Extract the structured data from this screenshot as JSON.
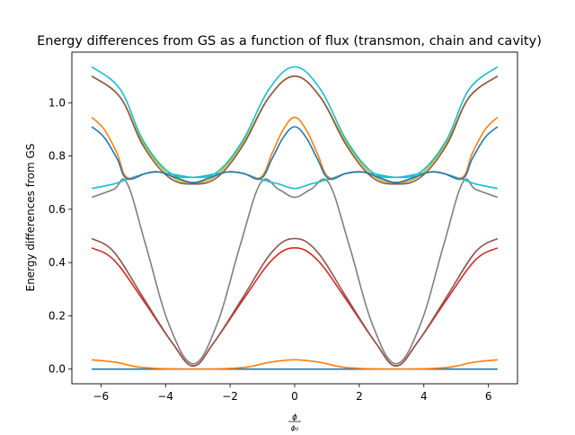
{
  "chart_data": {
    "type": "line",
    "title": "Energy differences from GS as a function of flux (transmon, chain and cavity)",
    "xlabel_num": "ϕ",
    "xlabel_den": "ϕ₀",
    "ylabel": "Energy differences from GS",
    "xlim": [
      -6.9,
      6.9
    ],
    "ylim": [
      -0.055,
      1.19
    ],
    "xticks": [
      -6,
      -4,
      -2,
      0,
      2,
      4,
      6
    ],
    "xtick_labels": [
      "−6",
      "−4",
      "−2",
      "0",
      "2",
      "4",
      "6"
    ],
    "yticks": [
      0.0,
      0.2,
      0.4,
      0.6,
      0.8,
      1.0
    ],
    "ytick_labels": [
      "0.0",
      "0.2",
      "0.4",
      "0.6",
      "0.8",
      "1.0"
    ],
    "grid": false,
    "x_range": [
      -6.2832,
      6.2832
    ],
    "series": [
      {
        "color": "#1f77b4",
        "x": [
          -6.2832,
          -3.1416,
          0,
          3.1416,
          6.2832
        ],
        "y": [
          0.0,
          0.0,
          0.0,
          0.0,
          0.0
        ]
      },
      {
        "color": "#ff7f0e",
        "x": [
          -6.2832,
          -5.5,
          -4.7,
          -3.1416,
          -1.6,
          -0.8,
          0,
          0.8,
          1.6,
          3.1416,
          4.7,
          5.5,
          6.2832
        ],
        "y": [
          0.035,
          0.025,
          0.006,
          0.0,
          0.006,
          0.025,
          0.035,
          0.025,
          0.006,
          0.0,
          0.006,
          0.025,
          0.035
        ]
      },
      {
        "color": "#d62728",
        "x": [
          -6.2832,
          -5.6,
          -4.7,
          -3.8,
          -3.1416,
          -2.5,
          -1.6,
          -0.7,
          0,
          0.7,
          1.6,
          2.5,
          3.1416,
          3.8,
          4.7,
          5.6,
          6.2832
        ],
        "y": [
          0.455,
          0.41,
          0.26,
          0.1,
          0.012,
          0.1,
          0.26,
          0.41,
          0.455,
          0.41,
          0.26,
          0.1,
          0.012,
          0.1,
          0.26,
          0.41,
          0.455
        ]
      },
      {
        "color": "#8c564b",
        "x": [
          -6.2832,
          -5.6,
          -4.7,
          -3.8,
          -3.1416,
          -2.5,
          -1.6,
          -0.7,
          0,
          0.7,
          1.6,
          2.5,
          3.1416,
          3.8,
          4.7,
          5.6,
          6.2832
        ],
        "y": [
          0.49,
          0.44,
          0.27,
          0.1,
          0.012,
          0.1,
          0.27,
          0.44,
          0.49,
          0.44,
          0.27,
          0.1,
          0.012,
          0.1,
          0.27,
          0.44,
          0.49
        ]
      },
      {
        "color": "#7f7f7f",
        "x": [
          -6.2832,
          -5.6,
          -5.2,
          -4.6,
          -3.9,
          -3.1416,
          -2.4,
          -1.7,
          -1.05,
          -0.5,
          0,
          0.5,
          1.05,
          1.7,
          2.4,
          3.1416,
          3.9,
          4.6,
          5.2,
          5.6,
          6.2832
        ],
        "y": [
          0.645,
          0.675,
          0.7,
          0.46,
          0.17,
          0.02,
          0.17,
          0.46,
          0.7,
          0.675,
          0.645,
          0.675,
          0.7,
          0.46,
          0.17,
          0.02,
          0.17,
          0.46,
          0.7,
          0.675,
          0.645
        ]
      },
      {
        "color": "#17becf",
        "x": [
          -6.2832,
          -5.6,
          -5.2,
          -4.6,
          -4.2,
          -3.7,
          -3.1416,
          -2.6,
          -2.1,
          -1.6,
          -1.05,
          -0.5,
          0,
          0.5,
          1.05,
          1.6,
          2.1,
          2.6,
          3.1416,
          3.7,
          4.2,
          4.6,
          5.2,
          5.6,
          6.2832
        ],
        "y": [
          0.678,
          0.695,
          0.712,
          0.735,
          0.74,
          0.73,
          0.72,
          0.73,
          0.74,
          0.735,
          0.712,
          0.695,
          0.678,
          0.695,
          0.712,
          0.735,
          0.74,
          0.73,
          0.72,
          0.73,
          0.74,
          0.735,
          0.712,
          0.695,
          0.678
        ]
      },
      {
        "color": "#bcbd22",
        "x": [
          -6.2832,
          -5.4,
          -4.7,
          -3.9,
          -3.1416,
          -2.4,
          -1.6,
          -0.8,
          0,
          0.8,
          1.6,
          2.4,
          3.1416,
          3.9,
          4.7,
          5.4,
          6.2832
        ],
        "y": [
          1.1,
          1.02,
          0.85,
          0.73,
          0.7,
          0.73,
          0.85,
          1.02,
          1.1,
          1.02,
          0.85,
          0.73,
          0.7,
          0.73,
          0.85,
          1.02,
          1.1
        ]
      },
      {
        "color": "#8c564b",
        "x": [
          -6.2832,
          -5.4,
          -4.7,
          -3.9,
          -3.1416,
          -2.4,
          -1.6,
          -0.8,
          0,
          0.8,
          1.6,
          2.4,
          3.1416,
          3.9,
          4.7,
          5.4,
          6.2832
        ],
        "y": [
          1.1,
          1.02,
          0.84,
          0.72,
          0.695,
          0.72,
          0.84,
          1.02,
          1.1,
          1.02,
          0.84,
          0.72,
          0.695,
          0.72,
          0.84,
          1.02,
          1.1
        ]
      },
      {
        "color": "#17becf",
        "x": [
          -6.2832,
          -5.4,
          -4.7,
          -3.9,
          -3.1416,
          -2.4,
          -1.6,
          -0.8,
          0,
          0.8,
          1.6,
          2.4,
          3.1416,
          3.9,
          4.7,
          5.4,
          6.2832
        ],
        "y": [
          1.135,
          1.05,
          0.86,
          0.74,
          0.72,
          0.74,
          0.86,
          1.05,
          1.135,
          1.05,
          0.86,
          0.74,
          0.72,
          0.74,
          0.86,
          1.05,
          1.135
        ]
      },
      {
        "color": "#ff7f0e",
        "x": [
          -6.2832,
          -5.9,
          -5.5,
          -5.2,
          -4.6,
          -4.2,
          -3.7,
          -3.1416,
          -2.6,
          -2.1,
          -1.6,
          -1.05,
          -0.7,
          -0.35,
          0,
          0.35,
          0.7,
          1.05,
          1.6,
          2.1,
          2.6,
          3.1416,
          3.7,
          4.2,
          4.6,
          5.2,
          5.5,
          5.9,
          6.2832
        ],
        "y": [
          0.945,
          0.9,
          0.81,
          0.72,
          0.735,
          0.74,
          0.72,
          0.7,
          0.72,
          0.74,
          0.735,
          0.72,
          0.81,
          0.9,
          0.945,
          0.9,
          0.81,
          0.72,
          0.735,
          0.74,
          0.72,
          0.7,
          0.72,
          0.74,
          0.735,
          0.72,
          0.81,
          0.9,
          0.945
        ]
      },
      {
        "color": "#1f77b4",
        "x": [
          -6.2832,
          -5.9,
          -5.5,
          -5.2,
          -4.6,
          -4.2,
          -3.7,
          -3.1416,
          -2.6,
          -2.1,
          -1.6,
          -1.05,
          -0.7,
          -0.35,
          0,
          0.35,
          0.7,
          1.05,
          1.6,
          2.1,
          2.6,
          3.1416,
          3.7,
          4.2,
          4.6,
          5.2,
          5.5,
          5.9,
          6.2832
        ],
        "y": [
          0.91,
          0.87,
          0.79,
          0.715,
          0.735,
          0.74,
          0.72,
          0.7,
          0.72,
          0.74,
          0.735,
          0.715,
          0.79,
          0.87,
          0.91,
          0.87,
          0.79,
          0.715,
          0.735,
          0.74,
          0.72,
          0.7,
          0.72,
          0.74,
          0.735,
          0.715,
          0.79,
          0.87,
          0.91
        ]
      }
    ]
  }
}
